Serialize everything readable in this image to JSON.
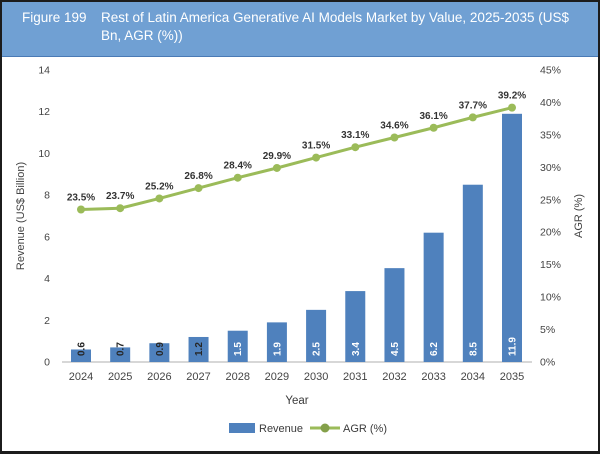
{
  "header": {
    "figure_label": "Figure 199",
    "title": "Rest of Latin America Generative AI Models Market by Value, 2025-2035 (US$ Bn, AGR (%))",
    "bg_color": "#70A0D3",
    "text_color": "#FFFFFF"
  },
  "chart_data": {
    "type": "combo",
    "title": "Rest of Latin America Generative AI Models Market by Value, 2025-2035 (US$ Bn, AGR (%))",
    "categories": [
      "2024",
      "2025",
      "2026",
      "2027",
      "2028",
      "2029",
      "2030",
      "2031",
      "2032",
      "2033",
      "2034",
      "2035"
    ],
    "series": [
      {
        "name": "Revenue",
        "type": "bar",
        "axis": "left",
        "color": "#4F81BD",
        "values": [
          0.6,
          0.7,
          0.9,
          1.2,
          1.5,
          1.9,
          2.5,
          3.4,
          4.5,
          6.2,
          8.5,
          11.9
        ],
        "labels": [
          "0.6",
          "0.7",
          "0.9",
          "1.2",
          "1.5",
          "1.9",
          "2.5",
          "3.4",
          "4.5",
          "6.2",
          "8.5",
          "11.9"
        ]
      },
      {
        "name": "AGR (%)",
        "type": "line",
        "axis": "right",
        "color": "#9BBB59",
        "values": [
          23.5,
          23.7,
          25.2,
          26.8,
          28.4,
          29.9,
          31.5,
          33.1,
          34.6,
          36.1,
          37.7,
          39.2
        ],
        "labels": [
          "23.5%",
          "23.7%",
          "25.2%",
          "26.8%",
          "28.4%",
          "29.9%",
          "31.5%",
          "33.1%",
          "34.6%",
          "36.1%",
          "37.7%",
          "39.2%"
        ]
      }
    ],
    "xlabel": "Year",
    "ylabel_left": "Revenue (US$ Billion)",
    "ylabel_right": "AGR (%)",
    "ylim_left": [
      0,
      14
    ],
    "yticks_left": [
      "0",
      "2",
      "4",
      "6",
      "8",
      "10",
      "12",
      "14"
    ],
    "ylim_right": [
      0,
      45
    ],
    "yticks_right": [
      "0%",
      "5%",
      "10%",
      "15%",
      "20%",
      "25%",
      "30%",
      "35%",
      "40%",
      "45%"
    ],
    "grid": false,
    "legend_position": "bottom",
    "legend": [
      "Revenue",
      "AGR (%)"
    ],
    "colors": {
      "axis_line": "#BFBFBF",
      "tick_text": "#444444",
      "data_label_dark": "#262626",
      "data_label_light": "#FFFFFF"
    }
  }
}
